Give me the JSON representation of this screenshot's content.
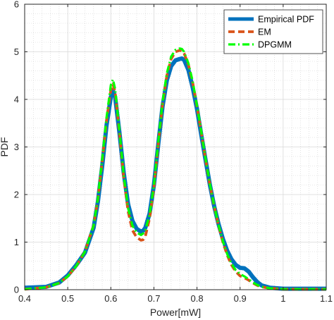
{
  "chart_data": {
    "type": "line",
    "title": "",
    "xlabel": "Power[mW]",
    "ylabel": "PDF",
    "xlim": [
      0.4,
      1.1
    ],
    "ylim": [
      0,
      6
    ],
    "x_ticks": [
      0.4,
      0.5,
      0.6,
      0.7,
      0.8,
      0.9,
      1.0,
      1.1
    ],
    "x_tick_labels": [
      "0.4",
      "0.5",
      "0.6",
      "0.7",
      "0.8",
      "0.9",
      "1",
      "1.1"
    ],
    "y_ticks": [
      0,
      1,
      2,
      3,
      4,
      5,
      6
    ],
    "y_tick_labels": [
      "0",
      "1",
      "2",
      "3",
      "4",
      "5",
      "6"
    ],
    "grid": true,
    "minor_grid": true,
    "legend_position": "top-right",
    "series": [
      {
        "name": "Empirical PDF",
        "color": "#0072BD",
        "style": "solid",
        "x": [
          0.4,
          0.45,
          0.48,
          0.5,
          0.52,
          0.54,
          0.56,
          0.57,
          0.58,
          0.59,
          0.6,
          0.605,
          0.61,
          0.62,
          0.63,
          0.64,
          0.65,
          0.66,
          0.67,
          0.675,
          0.68,
          0.69,
          0.7,
          0.71,
          0.72,
          0.73,
          0.74,
          0.75,
          0.76,
          0.765,
          0.77,
          0.78,
          0.79,
          0.8,
          0.81,
          0.82,
          0.83,
          0.84,
          0.85,
          0.86,
          0.87,
          0.88,
          0.89,
          0.9,
          0.91,
          0.92,
          0.93,
          0.94,
          0.95,
          0.97,
          1.0,
          1.05,
          1.1
        ],
        "values": [
          0.04,
          0.06,
          0.15,
          0.3,
          0.52,
          0.78,
          1.3,
          1.85,
          2.6,
          3.45,
          4.05,
          4.18,
          4.05,
          3.3,
          2.45,
          1.8,
          1.45,
          1.28,
          1.22,
          1.24,
          1.3,
          1.6,
          2.2,
          3.05,
          3.85,
          4.4,
          4.7,
          4.82,
          4.85,
          4.86,
          4.83,
          4.62,
          4.25,
          3.8,
          3.25,
          2.72,
          2.2,
          1.75,
          1.38,
          1.07,
          0.82,
          0.64,
          0.52,
          0.46,
          0.45,
          0.38,
          0.26,
          0.16,
          0.09,
          0.04,
          0.02,
          0.02,
          0.02
        ]
      },
      {
        "name": "EM",
        "color": "#D95319",
        "style": "dashed",
        "x": [
          0.4,
          0.45,
          0.48,
          0.5,
          0.52,
          0.54,
          0.56,
          0.57,
          0.58,
          0.59,
          0.6,
          0.605,
          0.61,
          0.62,
          0.63,
          0.64,
          0.65,
          0.66,
          0.67,
          0.675,
          0.68,
          0.69,
          0.7,
          0.71,
          0.72,
          0.73,
          0.74,
          0.75,
          0.76,
          0.765,
          0.77,
          0.78,
          0.79,
          0.8,
          0.81,
          0.82,
          0.83,
          0.84,
          0.85,
          0.86,
          0.87,
          0.88,
          0.89,
          0.9,
          0.91,
          0.92,
          0.93,
          0.94,
          0.95,
          0.97,
          1.0,
          1.05,
          1.1
        ],
        "values": [
          0.01,
          0.05,
          0.14,
          0.28,
          0.5,
          0.8,
          1.35,
          1.9,
          2.7,
          3.55,
          4.2,
          4.32,
          4.15,
          3.3,
          2.35,
          1.65,
          1.25,
          1.1,
          1.04,
          1.05,
          1.12,
          1.5,
          2.15,
          3.05,
          3.9,
          4.5,
          4.85,
          5.0,
          5.03,
          5.02,
          4.97,
          4.73,
          4.35,
          3.85,
          3.3,
          2.73,
          2.2,
          1.75,
          1.35,
          1.0,
          0.73,
          0.52,
          0.38,
          0.29,
          0.25,
          0.2,
          0.14,
          0.09,
          0.06,
          0.03,
          0.01,
          0.01,
          0.01
        ]
      },
      {
        "name": "DPGMM",
        "color": "#00FF00",
        "style": "dashdot",
        "x": [
          0.4,
          0.45,
          0.48,
          0.5,
          0.52,
          0.54,
          0.56,
          0.57,
          0.58,
          0.59,
          0.6,
          0.605,
          0.61,
          0.62,
          0.63,
          0.64,
          0.65,
          0.66,
          0.67,
          0.675,
          0.68,
          0.69,
          0.7,
          0.71,
          0.72,
          0.73,
          0.74,
          0.75,
          0.76,
          0.765,
          0.77,
          0.78,
          0.79,
          0.8,
          0.81,
          0.82,
          0.83,
          0.84,
          0.85,
          0.86,
          0.87,
          0.88,
          0.89,
          0.9,
          0.91,
          0.92,
          0.93,
          0.94,
          0.95,
          0.97,
          1.0,
          1.05,
          1.1
        ],
        "values": [
          0.01,
          0.05,
          0.14,
          0.28,
          0.5,
          0.8,
          1.35,
          1.92,
          2.75,
          3.62,
          4.3,
          4.42,
          4.22,
          3.35,
          2.4,
          1.72,
          1.35,
          1.2,
          1.15,
          1.18,
          1.25,
          1.58,
          2.2,
          3.1,
          3.95,
          4.55,
          4.9,
          5.04,
          5.07,
          5.06,
          5.0,
          4.76,
          4.38,
          3.87,
          3.32,
          2.75,
          2.22,
          1.76,
          1.36,
          1.02,
          0.75,
          0.55,
          0.41,
          0.33,
          0.28,
          0.22,
          0.15,
          0.1,
          0.06,
          0.03,
          0.01,
          0.01,
          0.01
        ]
      }
    ]
  }
}
